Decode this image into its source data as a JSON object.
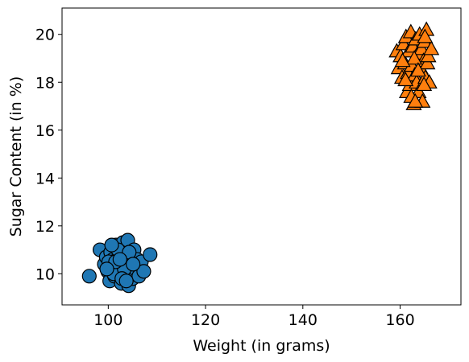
{
  "chart_data": {
    "type": "scatter",
    "title": "",
    "xlabel": "Weight (in grams)",
    "ylabel": "Sugar Content (in %)",
    "xlim": [
      90.5,
      172.5
    ],
    "ylim": [
      8.7,
      21.1
    ],
    "xticks": [
      100,
      120,
      140,
      160
    ],
    "yticks": [
      10,
      12,
      14,
      16,
      18,
      20
    ],
    "grid": false,
    "legend": "none",
    "series": [
      {
        "marker": "circle",
        "color": "#1f77b4",
        "points": [
          [
            96.1,
            9.9
          ],
          [
            98.3,
            11.0
          ],
          [
            99.2,
            10.4
          ],
          [
            99.6,
            10.7
          ],
          [
            99.9,
            10.1
          ],
          [
            100.3,
            9.7
          ],
          [
            100.5,
            10.9
          ],
          [
            100.8,
            10.3
          ],
          [
            101.0,
            10.6
          ],
          [
            101.3,
            9.9
          ],
          [
            101.6,
            11.2
          ],
          [
            101.9,
            10.4
          ],
          [
            102.2,
            10.8
          ],
          [
            102.5,
            10.1
          ],
          [
            102.7,
            9.6
          ],
          [
            103.0,
            11.3
          ],
          [
            103.2,
            10.5
          ],
          [
            103.5,
            10.0
          ],
          [
            103.8,
            10.8
          ],
          [
            104.0,
            11.4
          ],
          [
            104.2,
            9.5
          ],
          [
            104.5,
            10.3
          ],
          [
            104.8,
            10.7
          ],
          [
            105.0,
            9.8
          ],
          [
            105.3,
            11.0
          ],
          [
            105.6,
            10.2
          ],
          [
            105.9,
            10.6
          ],
          [
            106.3,
            9.9
          ],
          [
            106.8,
            10.5
          ],
          [
            107.3,
            10.1
          ],
          [
            108.6,
            10.8
          ],
          [
            100.1,
            10.5
          ],
          [
            101.1,
            10.0
          ],
          [
            102.0,
            11.0
          ],
          [
            103.3,
            10.2
          ],
          [
            104.3,
            10.9
          ],
          [
            102.8,
            9.8
          ],
          [
            101.5,
            10.5
          ],
          [
            100.7,
            11.2
          ],
          [
            103.7,
            9.7
          ],
          [
            105.1,
            10.4
          ],
          [
            99.7,
            10.2
          ],
          [
            102.4,
            10.6
          ]
        ]
      },
      {
        "marker": "triangle",
        "color": "#ff7f0e",
        "points": [
          [
            159.3,
            19.3
          ],
          [
            159.7,
            18.6
          ],
          [
            160.1,
            19.1
          ],
          [
            160.4,
            18.2
          ],
          [
            160.7,
            19.6
          ],
          [
            161.0,
            18.8
          ],
          [
            161.2,
            19.9
          ],
          [
            161.4,
            17.6
          ],
          [
            161.6,
            18.4
          ],
          [
            161.8,
            19.3
          ],
          [
            162.0,
            17.9
          ],
          [
            162.2,
            20.1
          ],
          [
            162.4,
            18.7
          ],
          [
            162.6,
            19.5
          ],
          [
            162.8,
            17.1
          ],
          [
            163.0,
            18.3
          ],
          [
            163.2,
            19.8
          ],
          [
            163.4,
            18.0
          ],
          [
            163.6,
            19.2
          ],
          [
            163.8,
            17.6
          ],
          [
            164.0,
            20.0
          ],
          [
            164.2,
            18.6
          ],
          [
            164.4,
            19.4
          ],
          [
            164.6,
            17.2
          ],
          [
            164.8,
            18.9
          ],
          [
            165.0,
            19.7
          ],
          [
            165.2,
            18.2
          ],
          [
            165.4,
            20.2
          ],
          [
            165.6,
            18.8
          ],
          [
            165.8,
            19.1
          ],
          [
            166.0,
            18.0
          ],
          [
            166.4,
            19.4
          ],
          [
            161.1,
            18.1
          ],
          [
            162.9,
            19.0
          ],
          [
            163.7,
            18.5
          ],
          [
            164.9,
            17.9
          ],
          [
            160.5,
            18.9
          ],
          [
            162.3,
            17.4
          ],
          [
            165.1,
            19.9
          ],
          [
            163.1,
            17.2
          ]
        ]
      }
    ]
  }
}
